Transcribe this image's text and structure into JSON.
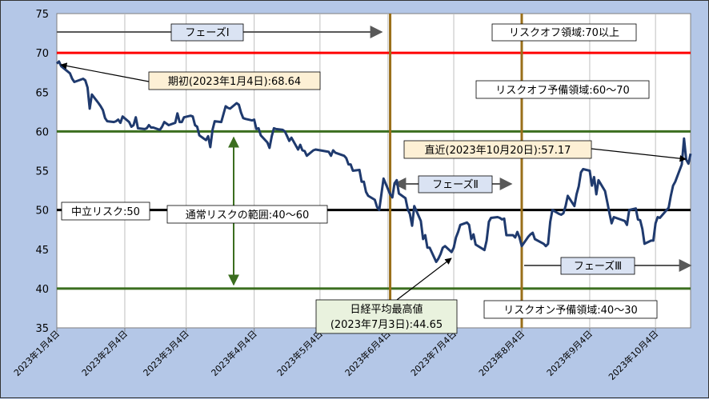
{
  "chart_data": {
    "type": "line",
    "title": "",
    "xlabel": "",
    "ylabel": "",
    "ylim": [
      35,
      75
    ],
    "yticks": [
      35,
      40,
      45,
      50,
      55,
      60,
      65,
      70,
      75
    ],
    "xtick_labels": [
      "2023年1月4日",
      "2023年2月4日",
      "2023年3月4日",
      "2023年4月4日",
      "2023年5月4日",
      "2023年6月4日",
      "2023年7月4日",
      "2023年8月4日",
      "2023年9月4日",
      "2023年10月4日"
    ],
    "grid": "vertical",
    "colors": {
      "series": "#1f3a6e",
      "red_line": "#ff0000",
      "green_line": "#3b6e1f",
      "black_line": "#000000",
      "phase_line": "#9a6f1a",
      "plot_bg": "#ffffff",
      "callout_bg": "#fdf0d5"
    },
    "horizontal_lines": [
      {
        "y": 70,
        "color": "red"
      },
      {
        "y": 60,
        "color": "green"
      },
      {
        "y": 50,
        "color": "black"
      },
      {
        "y": 40,
        "color": "green"
      }
    ],
    "phase_dividers": [
      "2023-06-05",
      "2023-08-04"
    ],
    "series": [
      {
        "points": [
          [
            "2023-01-04",
            68.64
          ],
          [
            "2023-01-05",
            68.9
          ],
          [
            "2023-01-06",
            68.3
          ],
          [
            "2023-01-10",
            67.4
          ],
          [
            "2023-01-11",
            66.7
          ],
          [
            "2023-01-12",
            66.3
          ],
          [
            "2023-01-13",
            66.4
          ],
          [
            "2023-01-16",
            66.7
          ],
          [
            "2023-01-17",
            66.5
          ],
          [
            "2023-01-18",
            65.6
          ],
          [
            "2023-01-19",
            62.9
          ],
          [
            "2023-01-20",
            64.7
          ],
          [
            "2023-01-23",
            63.6
          ],
          [
            "2023-01-24",
            63.2
          ],
          [
            "2023-01-25",
            62.7
          ],
          [
            "2023-01-26",
            61.7
          ],
          [
            "2023-01-27",
            61.3
          ],
          [
            "2023-01-30",
            61.2
          ],
          [
            "2023-01-31",
            61.3
          ],
          [
            "2023-02-01",
            61.5
          ],
          [
            "2023-02-02",
            61.1
          ],
          [
            "2023-02-03",
            61.9
          ],
          [
            "2023-02-06",
            61.2
          ],
          [
            "2023-02-07",
            60.6
          ],
          [
            "2023-02-08",
            60.8
          ],
          [
            "2023-02-09",
            61.8
          ],
          [
            "2023-02-10",
            60.4
          ],
          [
            "2023-02-13",
            60.3
          ],
          [
            "2023-02-14",
            60.4
          ],
          [
            "2023-02-15",
            60.8
          ],
          [
            "2023-02-16",
            60.5
          ],
          [
            "2023-02-17",
            60.5
          ],
          [
            "2023-02-20",
            60.2
          ],
          [
            "2023-02-21",
            60.6
          ],
          [
            "2023-02-22",
            61.2
          ],
          [
            "2023-02-24",
            60.8
          ],
          [
            "2023-02-27",
            61.1
          ],
          [
            "2023-02-28",
            62.3
          ],
          [
            "2023-03-01",
            61.2
          ],
          [
            "2023-03-02",
            61.2
          ],
          [
            "2023-03-03",
            61.8
          ],
          [
            "2023-03-06",
            62.0
          ],
          [
            "2023-03-07",
            61.9
          ],
          [
            "2023-03-08",
            60.8
          ],
          [
            "2023-03-09",
            60.6
          ],
          [
            "2023-03-10",
            59.5
          ],
          [
            "2023-03-13",
            58.9
          ],
          [
            "2023-03-14",
            59.4
          ],
          [
            "2023-03-15",
            58.0
          ],
          [
            "2023-03-16",
            60.2
          ],
          [
            "2023-03-17",
            61.3
          ],
          [
            "2023-03-20",
            61.2
          ],
          [
            "2023-03-22",
            63.2
          ],
          [
            "2023-03-23",
            63.0
          ],
          [
            "2023-03-24",
            62.9
          ],
          [
            "2023-03-27",
            63.6
          ],
          [
            "2023-03-28",
            63.4
          ],
          [
            "2023-03-29",
            62.4
          ],
          [
            "2023-03-30",
            61.7
          ],
          [
            "2023-03-31",
            61.6
          ],
          [
            "2023-04-03",
            61.4
          ],
          [
            "2023-04-04",
            61.5
          ],
          [
            "2023-04-05",
            60.3
          ],
          [
            "2023-04-06",
            60.4
          ],
          [
            "2023-04-07",
            59.5
          ],
          [
            "2023-04-10",
            58.6
          ],
          [
            "2023-04-11",
            57.9
          ],
          [
            "2023-04-12",
            59.4
          ],
          [
            "2023-04-13",
            60.4
          ],
          [
            "2023-04-14",
            60.3
          ],
          [
            "2023-04-17",
            60.2
          ],
          [
            "2023-04-18",
            60.0
          ],
          [
            "2023-04-19",
            59.4
          ],
          [
            "2023-04-20",
            58.8
          ],
          [
            "2023-04-21",
            59.2
          ],
          [
            "2023-04-24",
            57.7
          ],
          [
            "2023-04-25",
            58.3
          ],
          [
            "2023-04-26",
            57.6
          ],
          [
            "2023-04-27",
            57.5
          ],
          [
            "2023-04-28",
            56.9
          ],
          [
            "2023-05-01",
            57.6
          ],
          [
            "2023-05-02",
            57.7
          ],
          [
            "2023-05-08",
            57.4
          ],
          [
            "2023-05-09",
            56.9
          ],
          [
            "2023-05-10",
            57.6
          ],
          [
            "2023-05-11",
            57.3
          ],
          [
            "2023-05-12",
            57.2
          ],
          [
            "2023-05-15",
            56.9
          ],
          [
            "2023-05-16",
            56.6
          ],
          [
            "2023-05-17",
            55.8
          ],
          [
            "2023-05-18",
            55.8
          ],
          [
            "2023-05-19",
            55.0
          ],
          [
            "2023-05-22",
            55.1
          ],
          [
            "2023-05-23",
            53.6
          ],
          [
            "2023-05-24",
            53.6
          ],
          [
            "2023-05-25",
            52.3
          ],
          [
            "2023-05-26",
            51.8
          ],
          [
            "2023-05-29",
            51.3
          ],
          [
            "2023-05-30",
            50.4
          ],
          [
            "2023-05-31",
            50.0
          ],
          [
            "2023-06-01",
            52.0
          ],
          [
            "2023-06-02",
            54.0
          ],
          [
            "2023-06-05",
            52.0
          ],
          [
            "2023-06-06",
            51.6
          ],
          [
            "2023-06-07",
            53.4
          ],
          [
            "2023-06-08",
            53.8
          ],
          [
            "2023-06-09",
            52.1
          ],
          [
            "2023-06-12",
            51.5
          ],
          [
            "2023-06-13",
            50.1
          ],
          [
            "2023-06-14",
            49.5
          ],
          [
            "2023-06-15",
            48.0
          ],
          [
            "2023-06-16",
            50.5
          ],
          [
            "2023-06-19",
            48.6
          ],
          [
            "2023-06-20",
            46.3
          ],
          [
            "2023-06-21",
            46.8
          ],
          [
            "2023-06-22",
            45.2
          ],
          [
            "2023-06-23",
            45.2
          ],
          [
            "2023-06-26",
            43.4
          ],
          [
            "2023-06-27",
            43.8
          ],
          [
            "2023-06-28",
            44.4
          ],
          [
            "2023-06-29",
            45.2
          ],
          [
            "2023-06-30",
            45.4
          ],
          [
            "2023-07-03",
            44.65
          ],
          [
            "2023-07-04",
            45.2
          ],
          [
            "2023-07-05",
            46.5
          ],
          [
            "2023-07-06",
            47.2
          ],
          [
            "2023-07-07",
            48.1
          ],
          [
            "2023-07-10",
            48.4
          ],
          [
            "2023-07-11",
            48.1
          ],
          [
            "2023-07-12",
            46.3
          ],
          [
            "2023-07-13",
            46.9
          ],
          [
            "2023-07-14",
            45.6
          ],
          [
            "2023-07-18",
            44.9
          ],
          [
            "2023-07-19",
            46.1
          ],
          [
            "2023-07-20",
            48.5
          ],
          [
            "2023-07-21",
            49.0
          ],
          [
            "2023-07-24",
            49.1
          ],
          [
            "2023-07-25",
            49.0
          ],
          [
            "2023-07-26",
            48.8
          ],
          [
            "2023-07-27",
            48.9
          ],
          [
            "2023-07-28",
            46.8
          ],
          [
            "2023-07-31",
            46.8
          ],
          [
            "2023-08-01",
            46.5
          ],
          [
            "2023-08-02",
            47.2
          ],
          [
            "2023-08-03",
            46.5
          ],
          [
            "2023-08-04",
            45.4
          ],
          [
            "2023-08-07",
            46.6
          ],
          [
            "2023-08-08",
            46.9
          ],
          [
            "2023-08-09",
            47.1
          ],
          [
            "2023-08-10",
            46.3
          ],
          [
            "2023-08-14",
            45.7
          ],
          [
            "2023-08-15",
            45.4
          ],
          [
            "2023-08-16",
            45.7
          ],
          [
            "2023-08-17",
            48.5
          ],
          [
            "2023-08-18",
            50.0
          ],
          [
            "2023-08-21",
            49.5
          ],
          [
            "2023-08-22",
            49.4
          ],
          [
            "2023-08-23",
            49.6
          ],
          [
            "2023-08-24",
            50.5
          ],
          [
            "2023-08-25",
            51.8
          ],
          [
            "2023-08-28",
            50.5
          ],
          [
            "2023-08-29",
            52.0
          ],
          [
            "2023-08-30",
            53.0
          ],
          [
            "2023-08-31",
            54.8
          ],
          [
            "2023-09-01",
            55.2
          ],
          [
            "2023-09-04",
            55.0
          ],
          [
            "2023-09-05",
            53.1
          ],
          [
            "2023-09-06",
            54.2
          ],
          [
            "2023-09-07",
            52.0
          ],
          [
            "2023-09-08",
            53.8
          ],
          [
            "2023-09-11",
            52.4
          ],
          [
            "2023-09-12",
            51.0
          ],
          [
            "2023-09-13",
            49.6
          ],
          [
            "2023-09-14",
            48.3
          ],
          [
            "2023-09-15",
            49.1
          ],
          [
            "2023-09-19",
            48.7
          ],
          [
            "2023-09-20",
            48.6
          ],
          [
            "2023-09-21",
            48.1
          ],
          [
            "2023-09-22",
            50.0
          ],
          [
            "2023-09-25",
            50.2
          ],
          [
            "2023-09-26",
            48.8
          ],
          [
            "2023-09-27",
            48.7
          ],
          [
            "2023-09-28",
            47.6
          ],
          [
            "2023-09-29",
            45.7
          ],
          [
            "2023-10-02",
            46.1
          ],
          [
            "2023-10-03",
            46.1
          ],
          [
            "2023-10-04",
            48.3
          ],
          [
            "2023-10-05",
            49.1
          ],
          [
            "2023-10-06",
            49.0
          ],
          [
            "2023-10-10",
            50.3
          ],
          [
            "2023-10-11",
            51.8
          ],
          [
            "2023-10-12",
            53.1
          ],
          [
            "2023-10-13",
            53.6
          ],
          [
            "2023-10-16",
            55.8
          ],
          [
            "2023-10-17",
            59.1
          ],
          [
            "2023-10-18",
            56.4
          ],
          [
            "2023-10-19",
            55.9
          ],
          [
            "2023-10-20",
            57.17
          ]
        ]
      }
    ],
    "annotations": {
      "phase1": "フェーズⅠ",
      "phase2": "フェーズⅡ",
      "phase3": "フェーズⅢ",
      "risk_off": "リスクオフ領域:70以上",
      "risk_off_reserve": "リスクオフ予備領域:60～70",
      "neutral": "中立リスク:50",
      "normal_range": "通常リスクの範囲:40～60",
      "risk_on_reserve": "リスクオン予備領域:40～30",
      "start": "期初(2023年1月4日):68.64",
      "latest": "直近(2023年10月20日):57.17",
      "nikkei_high_line1": "日経平均最高値",
      "nikkei_high_line2": "(2023年7月3日):44.65"
    }
  }
}
